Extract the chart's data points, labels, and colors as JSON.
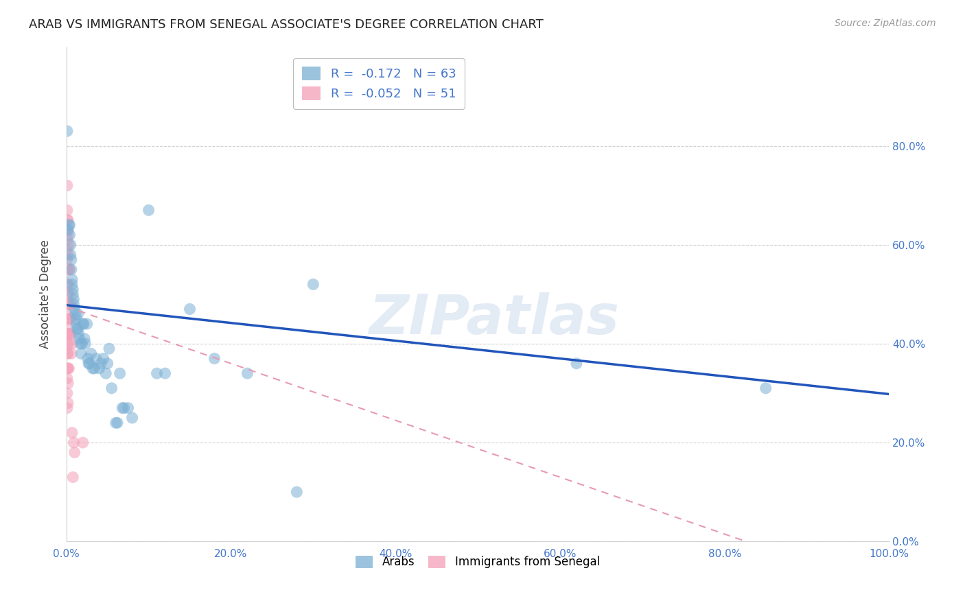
{
  "title": "ARAB VS IMMIGRANTS FROM SENEGAL ASSOCIATE'S DEGREE CORRELATION CHART",
  "source": "Source: ZipAtlas.com",
  "ylabel": "Associate's Degree",
  "watermark": "ZIPatlas",
  "legend_entry_arab": "R =  -0.172   N = 63",
  "legend_entry_senegal": "R =  -0.052   N = 51",
  "legend_text_color": "#4477cc",
  "arab_color": "#7bafd4",
  "senegal_color": "#f4a0b8",
  "arab_trendline_color": "#2255bb",
  "senegal_trendline_color": "#e89ab0",
  "background_color": "#ffffff",
  "grid_color": "#cccccc",
  "tick_label_color": "#4477cc",
  "ylabel_color": "#444444",
  "title_color": "#222222",
  "source_color": "#999999",
  "watermark_color": "#c8d8ec",
  "arab_points": [
    [
      0.001,
      0.83
    ],
    [
      0.002,
      0.63
    ],
    [
      0.003,
      0.64
    ],
    [
      0.004,
      0.64
    ],
    [
      0.004,
      0.62
    ],
    [
      0.005,
      0.6
    ],
    [
      0.005,
      0.58
    ],
    [
      0.006,
      0.57
    ],
    [
      0.006,
      0.55
    ],
    [
      0.007,
      0.53
    ],
    [
      0.007,
      0.52
    ],
    [
      0.008,
      0.51
    ],
    [
      0.008,
      0.5
    ],
    [
      0.009,
      0.49
    ],
    [
      0.009,
      0.48
    ],
    [
      0.01,
      0.47
    ],
    [
      0.011,
      0.46
    ],
    [
      0.012,
      0.45
    ],
    [
      0.012,
      0.44
    ],
    [
      0.013,
      0.43
    ],
    [
      0.014,
      0.46
    ],
    [
      0.014,
      0.43
    ],
    [
      0.015,
      0.42
    ],
    [
      0.016,
      0.41
    ],
    [
      0.017,
      0.4
    ],
    [
      0.018,
      0.38
    ],
    [
      0.019,
      0.4
    ],
    [
      0.02,
      0.44
    ],
    [
      0.021,
      0.44
    ],
    [
      0.022,
      0.41
    ],
    [
      0.023,
      0.4
    ],
    [
      0.025,
      0.44
    ],
    [
      0.026,
      0.37
    ],
    [
      0.027,
      0.36
    ],
    [
      0.028,
      0.36
    ],
    [
      0.03,
      0.38
    ],
    [
      0.032,
      0.35
    ],
    [
      0.034,
      0.35
    ],
    [
      0.036,
      0.37
    ],
    [
      0.04,
      0.35
    ],
    [
      0.042,
      0.36
    ],
    [
      0.045,
      0.37
    ],
    [
      0.048,
      0.34
    ],
    [
      0.05,
      0.36
    ],
    [
      0.052,
      0.39
    ],
    [
      0.055,
      0.31
    ],
    [
      0.06,
      0.24
    ],
    [
      0.062,
      0.24
    ],
    [
      0.065,
      0.34
    ],
    [
      0.068,
      0.27
    ],
    [
      0.07,
      0.27
    ],
    [
      0.075,
      0.27
    ],
    [
      0.08,
      0.25
    ],
    [
      0.1,
      0.67
    ],
    [
      0.11,
      0.34
    ],
    [
      0.12,
      0.34
    ],
    [
      0.15,
      0.47
    ],
    [
      0.18,
      0.37
    ],
    [
      0.22,
      0.34
    ],
    [
      0.28,
      0.1
    ],
    [
      0.3,
      0.52
    ],
    [
      0.62,
      0.36
    ],
    [
      0.85,
      0.31
    ]
  ],
  "senegal_points": [
    [
      0.001,
      0.72
    ],
    [
      0.001,
      0.67
    ],
    [
      0.001,
      0.65
    ],
    [
      0.001,
      0.63
    ],
    [
      0.001,
      0.61
    ],
    [
      0.001,
      0.59
    ],
    [
      0.001,
      0.57
    ],
    [
      0.001,
      0.55
    ],
    [
      0.001,
      0.52
    ],
    [
      0.001,
      0.5
    ],
    [
      0.001,
      0.48
    ],
    [
      0.001,
      0.46
    ],
    [
      0.001,
      0.44
    ],
    [
      0.001,
      0.42
    ],
    [
      0.001,
      0.4
    ],
    [
      0.001,
      0.38
    ],
    [
      0.001,
      0.35
    ],
    [
      0.001,
      0.33
    ],
    [
      0.001,
      0.3
    ],
    [
      0.001,
      0.27
    ],
    [
      0.002,
      0.65
    ],
    [
      0.002,
      0.62
    ],
    [
      0.002,
      0.58
    ],
    [
      0.002,
      0.55
    ],
    [
      0.002,
      0.52
    ],
    [
      0.002,
      0.48
    ],
    [
      0.002,
      0.45
    ],
    [
      0.002,
      0.42
    ],
    [
      0.002,
      0.38
    ],
    [
      0.002,
      0.35
    ],
    [
      0.002,
      0.32
    ],
    [
      0.002,
      0.28
    ],
    [
      0.003,
      0.6
    ],
    [
      0.003,
      0.55
    ],
    [
      0.003,
      0.5
    ],
    [
      0.003,
      0.45
    ],
    [
      0.003,
      0.4
    ],
    [
      0.003,
      0.35
    ],
    [
      0.004,
      0.55
    ],
    [
      0.004,
      0.48
    ],
    [
      0.004,
      0.42
    ],
    [
      0.005,
      0.48
    ],
    [
      0.005,
      0.42
    ],
    [
      0.006,
      0.45
    ],
    [
      0.006,
      0.38
    ],
    [
      0.007,
      0.4
    ],
    [
      0.007,
      0.22
    ],
    [
      0.008,
      0.13
    ],
    [
      0.009,
      0.2
    ],
    [
      0.01,
      0.18
    ],
    [
      0.02,
      0.2
    ]
  ],
  "arab_trendline": [
    0.0,
    1.0,
    0.478,
    0.298
  ],
  "senegal_trendline": [
    0.0,
    1.0,
    0.475,
    -0.1
  ],
  "xlim": [
    0.0,
    1.0
  ],
  "ylim": [
    0.0,
    1.0
  ],
  "xticks": [
    0.0,
    0.2,
    0.4,
    0.6,
    0.8,
    1.0
  ],
  "yticks": [
    0.0,
    0.2,
    0.4,
    0.6,
    0.8
  ],
  "xticklabels": [
    "0.0%",
    "20.0%",
    "40.0%",
    "60.0%",
    "80.0%",
    "100.0%"
  ],
  "ytick_right_labels": [
    "0.0%",
    "20.0%",
    "40.0%",
    "60.0%",
    "80.0%"
  ],
  "title_fontsize": 13,
  "source_fontsize": 10,
  "axis_label_fontsize": 12,
  "tick_fontsize": 11,
  "legend_fontsize": 13,
  "marker_size": 150,
  "marker_alpha": 0.55,
  "trendline_lw_arab": 2.5,
  "trendline_lw_senegal": 1.5
}
